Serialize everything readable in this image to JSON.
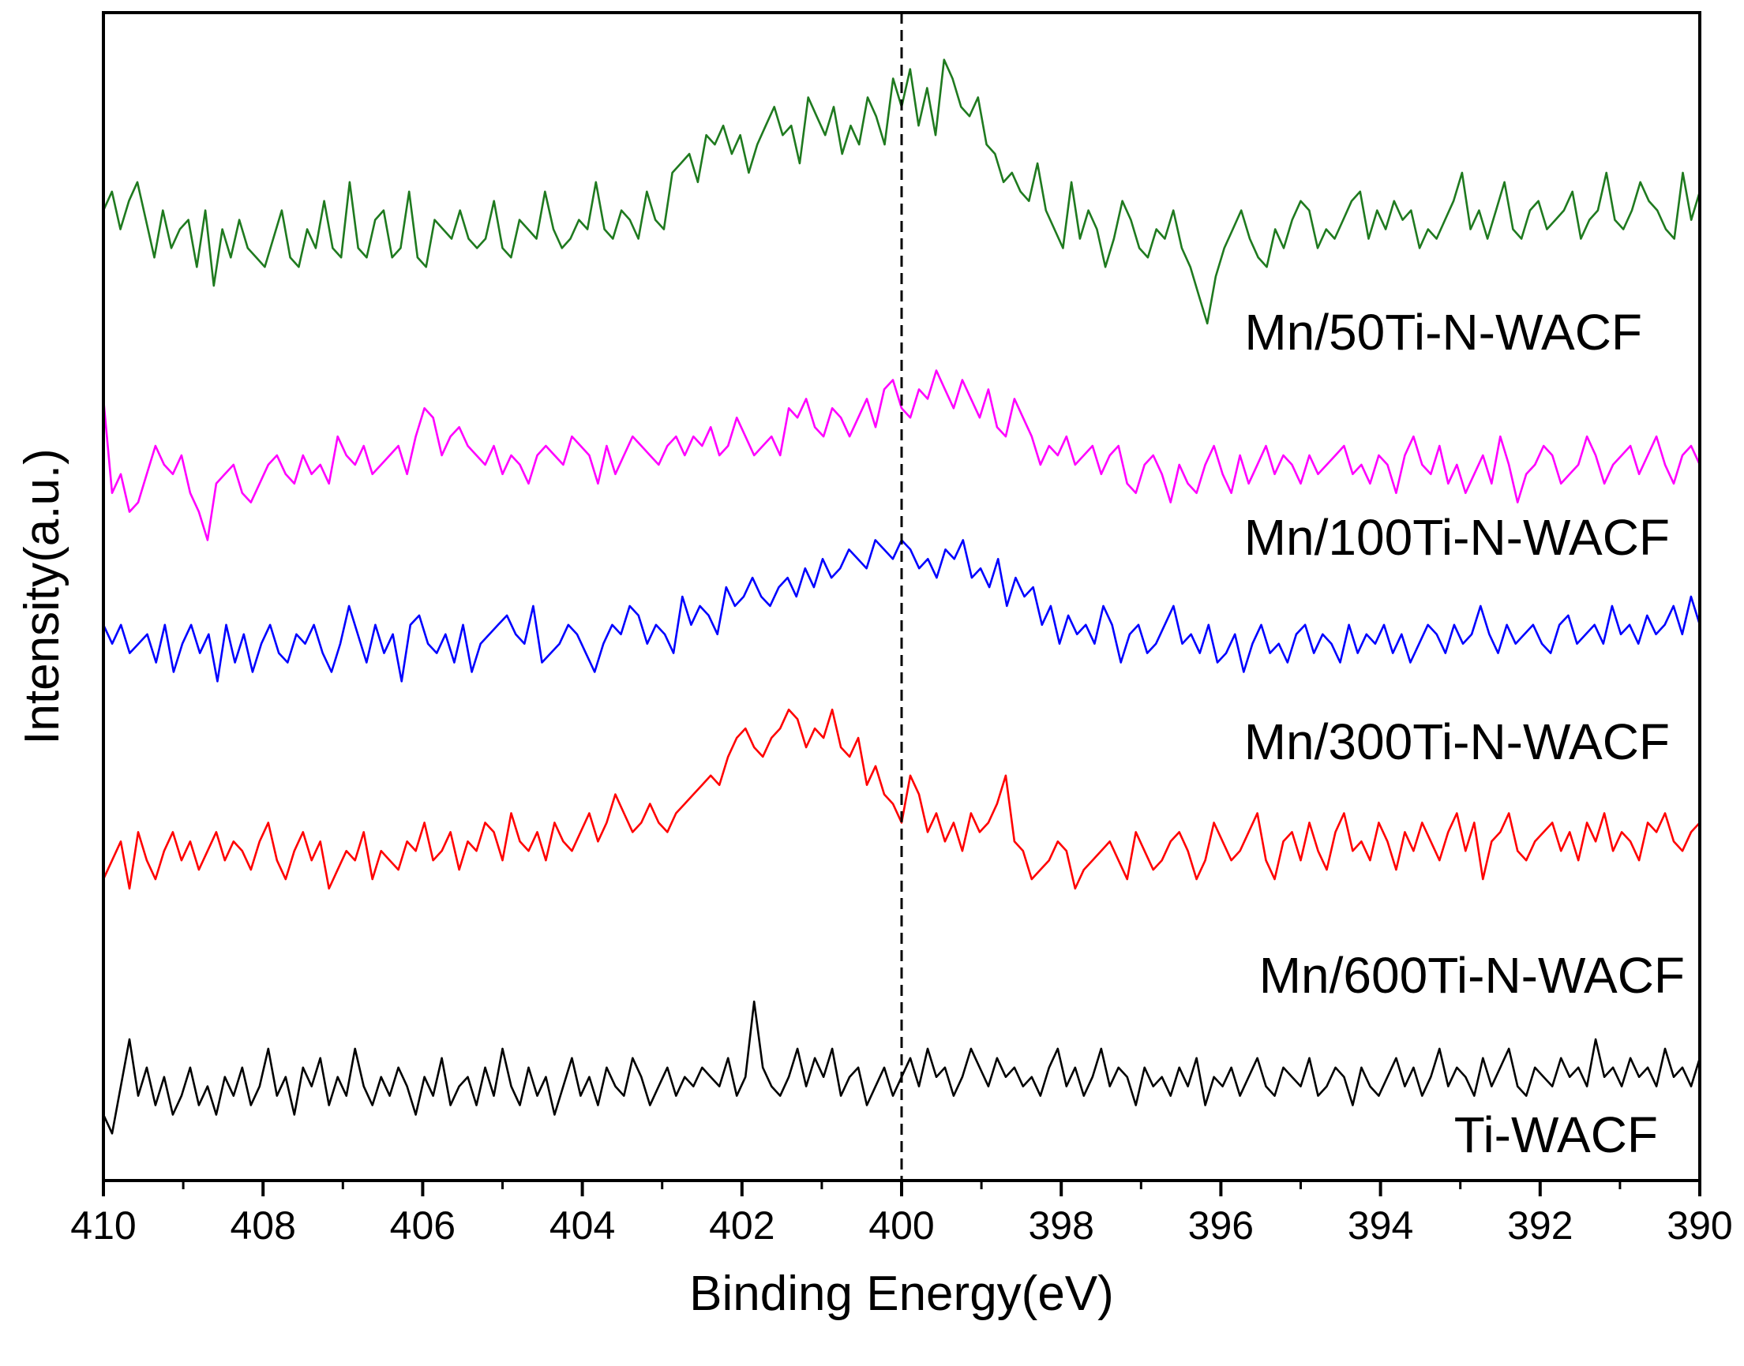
{
  "chart_data": {
    "type": "line",
    "title": "",
    "xlabel": "Binding Energy(eV)",
    "ylabel": "Intensity(a.u.)",
    "xlim": [
      410,
      390
    ],
    "ylim": [
      0,
      6.2
    ],
    "x_reversed": true,
    "grid": false,
    "legend": "inline labels on the right",
    "xticks": [
      410,
      408,
      406,
      404,
      402,
      400,
      398,
      396,
      394,
      392,
      390
    ],
    "xtick_labels": [
      "410",
      "408",
      "406",
      "404",
      "402",
      "400",
      "398",
      "396",
      "394",
      "392",
      "390"
    ],
    "reference_line": {
      "x": 400,
      "style": "dashed",
      "color": "#000000"
    },
    "series": [
      {
        "name": "Mn/50Ti-N-WACF",
        "label": "Mn/50Ti-N-WACF",
        "color": "#1f7a1f",
        "x_start": 410,
        "x_end": 390,
        "values": [
          5.15,
          5.25,
          5.05,
          5.2,
          5.3,
          5.1,
          4.9,
          5.15,
          4.95,
          5.05,
          5.1,
          4.85,
          5.15,
          4.75,
          5.05,
          4.9,
          5.1,
          4.95,
          4.9,
          4.85,
          5.0,
          5.15,
          4.9,
          4.85,
          5.05,
          4.95,
          5.2,
          4.95,
          4.9,
          5.3,
          4.95,
          4.9,
          5.1,
          5.15,
          4.9,
          4.95,
          5.25,
          4.9,
          4.85,
          5.1,
          5.05,
          5.0,
          5.15,
          5.0,
          4.95,
          5.0,
          5.2,
          4.95,
          4.9,
          5.1,
          5.05,
          5.0,
          5.25,
          5.05,
          4.95,
          5.0,
          5.1,
          5.05,
          5.3,
          5.05,
          5.0,
          5.15,
          5.1,
          5.0,
          5.25,
          5.1,
          5.05,
          5.35,
          5.4,
          5.45,
          5.3,
          5.55,
          5.5,
          5.6,
          5.45,
          5.55,
          5.35,
          5.5,
          5.6,
          5.7,
          5.55,
          5.6,
          5.4,
          5.75,
          5.65,
          5.55,
          5.7,
          5.45,
          5.6,
          5.5,
          5.75,
          5.65,
          5.5,
          5.85,
          5.7,
          5.9,
          5.6,
          5.8,
          5.55,
          5.95,
          5.85,
          5.7,
          5.65,
          5.75,
          5.5,
          5.45,
          5.3,
          5.35,
          5.25,
          5.2,
          5.4,
          5.15,
          5.05,
          4.95,
          5.3,
          5.0,
          5.15,
          5.05,
          4.85,
          5.0,
          5.2,
          5.1,
          4.95,
          4.9,
          5.05,
          5.0,
          5.15,
          4.95,
          4.85,
          4.7,
          4.55,
          4.8,
          4.95,
          5.05,
          5.15,
          5.0,
          4.9,
          4.85,
          5.05,
          4.95,
          5.1,
          5.2,
          5.15,
          4.95,
          5.05,
          5.0,
          5.1,
          5.2,
          5.25,
          5.0,
          5.15,
          5.05,
          5.2,
          5.1,
          5.15,
          4.95,
          5.05,
          5.0,
          5.1,
          5.2,
          5.35,
          5.05,
          5.15,
          5.0,
          5.15,
          5.3,
          5.05,
          5.0,
          5.15,
          5.2,
          5.05,
          5.1,
          5.15,
          5.25,
          5.0,
          5.1,
          5.15,
          5.35,
          5.1,
          5.05,
          5.15,
          5.3,
          5.2,
          5.15,
          5.05,
          5.0,
          5.35,
          5.1,
          5.25
        ]
      },
      {
        "name": "Mn/100Ti-N-WACF",
        "label": "Mn/100Ti-N-WACF",
        "color": "#ff00ff",
        "x_start": 410,
        "x_end": 390,
        "values": [
          4.15,
          3.65,
          3.75,
          3.55,
          3.6,
          3.75,
          3.9,
          3.8,
          3.75,
          3.85,
          3.65,
          3.55,
          3.4,
          3.7,
          3.75,
          3.8,
          3.65,
          3.6,
          3.7,
          3.8,
          3.85,
          3.75,
          3.7,
          3.85,
          3.75,
          3.8,
          3.7,
          3.95,
          3.85,
          3.8,
          3.9,
          3.75,
          3.8,
          3.85,
          3.9,
          3.75,
          3.95,
          4.1,
          4.05,
          3.85,
          3.95,
          4.0,
          3.9,
          3.85,
          3.8,
          3.9,
          3.75,
          3.85,
          3.8,
          3.7,
          3.85,
          3.9,
          3.85,
          3.8,
          3.95,
          3.9,
          3.85,
          3.7,
          3.9,
          3.75,
          3.85,
          3.95,
          3.9,
          3.85,
          3.8,
          3.9,
          3.95,
          3.85,
          3.95,
          3.9,
          4.0,
          3.85,
          3.9,
          4.05,
          3.95,
          3.85,
          3.9,
          3.95,
          3.85,
          4.1,
          4.05,
          4.15,
          4.0,
          3.95,
          4.1,
          4.05,
          3.95,
          4.05,
          4.15,
          4.0,
          4.2,
          4.25,
          4.1,
          4.05,
          4.2,
          4.15,
          4.3,
          4.2,
          4.1,
          4.25,
          4.15,
          4.05,
          4.2,
          4.0,
          3.95,
          4.15,
          4.05,
          3.95,
          3.8,
          3.9,
          3.85,
          3.95,
          3.8,
          3.85,
          3.9,
          3.75,
          3.85,
          3.9,
          3.7,
          3.65,
          3.8,
          3.85,
          3.75,
          3.6,
          3.8,
          3.7,
          3.65,
          3.8,
          3.9,
          3.75,
          3.65,
          3.85,
          3.7,
          3.8,
          3.9,
          3.75,
          3.85,
          3.8,
          3.7,
          3.85,
          3.75,
          3.8,
          3.85,
          3.9,
          3.75,
          3.8,
          3.7,
          3.85,
          3.8,
          3.65,
          3.85,
          3.95,
          3.8,
          3.75,
          3.9,
          3.7,
          3.8,
          3.65,
          3.75,
          3.85,
          3.7,
          3.95,
          3.8,
          3.6,
          3.75,
          3.8,
          3.9,
          3.85,
          3.7,
          3.75,
          3.8,
          3.95,
          3.85,
          3.7,
          3.8,
          3.85,
          3.9,
          3.75,
          3.85,
          3.95,
          3.8,
          3.7,
          3.85,
          3.9,
          3.8
        ]
      },
      {
        "name": "Mn/300Ti-N-WACF",
        "label": "Mn/300Ti-N-WACF",
        "color": "#0000ff",
        "x_start": 410,
        "x_end": 390,
        "values": [
          2.95,
          2.85,
          2.95,
          2.8,
          2.85,
          2.9,
          2.75,
          2.95,
          2.7,
          2.85,
          2.95,
          2.8,
          2.9,
          2.65,
          2.95,
          2.75,
          2.9,
          2.7,
          2.85,
          2.95,
          2.8,
          2.75,
          2.9,
          2.85,
          2.95,
          2.8,
          2.7,
          2.85,
          3.05,
          2.9,
          2.75,
          2.95,
          2.8,
          2.9,
          2.65,
          2.95,
          3.0,
          2.85,
          2.8,
          2.9,
          2.75,
          2.95,
          2.7,
          2.85,
          2.9,
          2.95,
          3.0,
          2.9,
          2.85,
          3.05,
          2.75,
          2.8,
          2.85,
          2.95,
          2.9,
          2.8,
          2.7,
          2.85,
          2.95,
          2.9,
          3.05,
          3.0,
          2.85,
          2.95,
          2.9,
          2.8,
          3.1,
          2.95,
          3.05,
          3.0,
          2.9,
          3.15,
          3.05,
          3.1,
          3.2,
          3.1,
          3.05,
          3.15,
          3.2,
          3.1,
          3.25,
          3.15,
          3.3,
          3.2,
          3.25,
          3.35,
          3.3,
          3.25,
          3.4,
          3.35,
          3.3,
          3.4,
          3.35,
          3.25,
          3.3,
          3.2,
          3.35,
          3.3,
          3.4,
          3.2,
          3.25,
          3.15,
          3.3,
          3.05,
          3.2,
          3.1,
          3.15,
          2.95,
          3.05,
          2.85,
          3.0,
          2.9,
          2.95,
          2.85,
          3.05,
          2.95,
          2.75,
          2.9,
          2.95,
          2.8,
          2.85,
          2.95,
          3.05,
          2.85,
          2.9,
          2.8,
          2.95,
          2.75,
          2.8,
          2.9,
          2.7,
          2.85,
          2.95,
          2.8,
          2.85,
          2.75,
          2.9,
          2.95,
          2.8,
          2.9,
          2.85,
          2.75,
          2.95,
          2.8,
          2.9,
          2.85,
          2.95,
          2.8,
          2.9,
          2.75,
          2.85,
          2.95,
          2.9,
          2.8,
          2.95,
          2.85,
          2.9,
          3.05,
          2.9,
          2.8,
          2.95,
          2.85,
          2.9,
          2.95,
          2.85,
          2.8,
          2.95,
          3.0,
          2.85,
          2.9,
          2.95,
          2.85,
          3.05,
          2.9,
          2.95,
          2.85,
          3.0,
          2.9,
          2.95,
          3.05,
          2.9,
          3.1,
          2.95
        ]
      },
      {
        "name": "Mn/600Ti-N-WACF",
        "label": "Mn/600Ti-N-WACF",
        "color": "#ff0000",
        "x_start": 410,
        "x_end": 390,
        "values": [
          1.6,
          1.7,
          1.8,
          1.55,
          1.85,
          1.7,
          1.6,
          1.75,
          1.85,
          1.7,
          1.8,
          1.65,
          1.75,
          1.85,
          1.7,
          1.8,
          1.75,
          1.65,
          1.8,
          1.9,
          1.7,
          1.6,
          1.75,
          1.85,
          1.7,
          1.8,
          1.55,
          1.65,
          1.75,
          1.7,
          1.85,
          1.6,
          1.75,
          1.7,
          1.65,
          1.8,
          1.75,
          1.9,
          1.7,
          1.75,
          1.85,
          1.65,
          1.8,
          1.75,
          1.9,
          1.85,
          1.7,
          1.95,
          1.8,
          1.75,
          1.85,
          1.7,
          1.9,
          1.8,
          1.75,
          1.85,
          1.95,
          1.8,
          1.9,
          2.05,
          1.95,
          1.85,
          1.9,
          2.0,
          1.9,
          1.85,
          1.95,
          2.0,
          2.05,
          2.1,
          2.15,
          2.1,
          2.25,
          2.35,
          2.4,
          2.3,
          2.25,
          2.35,
          2.4,
          2.5,
          2.45,
          2.3,
          2.4,
          2.35,
          2.5,
          2.3,
          2.25,
          2.35,
          2.1,
          2.2,
          2.05,
          2.0,
          1.9,
          2.15,
          2.05,
          1.85,
          1.95,
          1.8,
          1.9,
          1.75,
          1.95,
          1.85,
          1.9,
          2.0,
          2.15,
          1.8,
          1.75,
          1.6,
          1.65,
          1.7,
          1.8,
          1.75,
          1.55,
          1.65,
          1.7,
          1.75,
          1.8,
          1.7,
          1.6,
          1.85,
          1.75,
          1.65,
          1.7,
          1.8,
          1.85,
          1.75,
          1.6,
          1.7,
          1.9,
          1.8,
          1.7,
          1.75,
          1.85,
          1.95,
          1.7,
          1.6,
          1.8,
          1.85,
          1.7,
          1.9,
          1.75,
          1.65,
          1.85,
          1.95,
          1.75,
          1.8,
          1.7,
          1.9,
          1.8,
          1.65,
          1.85,
          1.75,
          1.9,
          1.8,
          1.7,
          1.85,
          1.95,
          1.75,
          1.9,
          1.6,
          1.8,
          1.85,
          1.95,
          1.75,
          1.7,
          1.8,
          1.85,
          1.9,
          1.75,
          1.85,
          1.7,
          1.9,
          1.8,
          1.95,
          1.75,
          1.85,
          1.8,
          1.7,
          1.9,
          1.85,
          1.95,
          1.8,
          1.75,
          1.85,
          1.9
        ]
      },
      {
        "name": "Ti-WACF",
        "label": "Ti-WACF",
        "color": "#000000",
        "x_start": 410,
        "x_end": 390,
        "values": [
          0.35,
          0.25,
          0.5,
          0.75,
          0.45,
          0.6,
          0.4,
          0.55,
          0.35,
          0.45,
          0.6,
          0.4,
          0.5,
          0.35,
          0.55,
          0.45,
          0.6,
          0.4,
          0.5,
          0.7,
          0.45,
          0.55,
          0.35,
          0.6,
          0.5,
          0.65,
          0.4,
          0.55,
          0.45,
          0.7,
          0.5,
          0.4,
          0.55,
          0.45,
          0.6,
          0.5,
          0.35,
          0.55,
          0.45,
          0.65,
          0.4,
          0.5,
          0.55,
          0.4,
          0.6,
          0.45,
          0.7,
          0.5,
          0.4,
          0.6,
          0.45,
          0.55,
          0.35,
          0.5,
          0.65,
          0.45,
          0.55,
          0.4,
          0.6,
          0.5,
          0.45,
          0.65,
          0.55,
          0.4,
          0.5,
          0.6,
          0.45,
          0.55,
          0.5,
          0.6,
          0.55,
          0.5,
          0.65,
          0.45,
          0.55,
          0.95,
          0.6,
          0.5,
          0.45,
          0.55,
          0.7,
          0.5,
          0.65,
          0.55,
          0.7,
          0.45,
          0.55,
          0.6,
          0.4,
          0.5,
          0.6,
          0.45,
          0.55,
          0.65,
          0.5,
          0.7,
          0.55,
          0.6,
          0.45,
          0.55,
          0.7,
          0.6,
          0.5,
          0.65,
          0.55,
          0.6,
          0.5,
          0.55,
          0.45,
          0.6,
          0.7,
          0.5,
          0.6,
          0.45,
          0.55,
          0.7,
          0.5,
          0.6,
          0.55,
          0.4,
          0.6,
          0.5,
          0.55,
          0.45,
          0.6,
          0.5,
          0.65,
          0.4,
          0.55,
          0.5,
          0.6,
          0.45,
          0.55,
          0.65,
          0.5,
          0.45,
          0.6,
          0.55,
          0.5,
          0.65,
          0.45,
          0.5,
          0.6,
          0.55,
          0.4,
          0.6,
          0.5,
          0.45,
          0.55,
          0.65,
          0.5,
          0.6,
          0.45,
          0.55,
          0.7,
          0.5,
          0.6,
          0.55,
          0.45,
          0.65,
          0.5,
          0.6,
          0.7,
          0.5,
          0.45,
          0.6,
          0.55,
          0.5,
          0.65,
          0.55,
          0.6,
          0.5,
          0.75,
          0.55,
          0.6,
          0.5,
          0.65,
          0.55,
          0.6,
          0.5,
          0.7,
          0.55,
          0.6,
          0.5,
          0.65
        ]
      }
    ]
  }
}
